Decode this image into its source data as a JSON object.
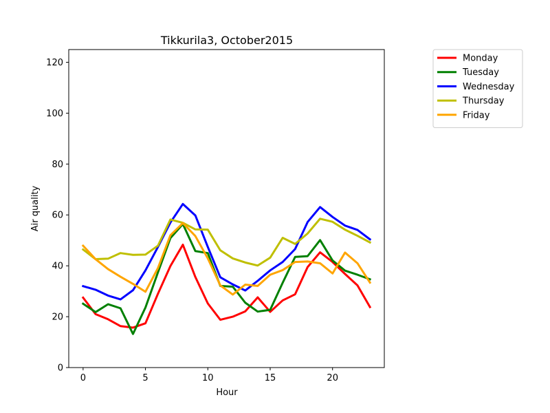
{
  "chart_data": {
    "type": "line",
    "title": "Tikkurila3, October2015",
    "xlabel": "Hour",
    "ylabel": "Air quality",
    "xlim": [
      -1.15,
      24.15
    ],
    "ylim": [
      0,
      125
    ],
    "xticks": [
      0,
      5,
      10,
      15,
      20
    ],
    "yticks": [
      0,
      20,
      40,
      60,
      80,
      100,
      120
    ],
    "grid": false,
    "legend_position": "outside-right-top",
    "x": [
      0,
      1,
      2,
      3,
      4,
      5,
      6,
      7,
      8,
      9,
      10,
      11,
      12,
      13,
      14,
      15,
      16,
      17,
      18,
      19,
      20,
      21,
      22,
      23
    ],
    "series": [
      {
        "name": "Monday",
        "color": "#ff0000",
        "values": [
          27.5,
          21,
          19,
          16.3,
          15.7,
          17.4,
          29,
          39.9,
          48.3,
          35.6,
          25.2,
          18.8,
          20,
          22.1,
          27.6,
          21.9,
          26.4,
          28.8,
          39.5,
          45.3,
          41.5,
          36.8,
          32.3,
          23.8
        ]
      },
      {
        "name": "Tuesday",
        "color": "#008000",
        "values": [
          25.1,
          21.8,
          24.9,
          23.3,
          13.2,
          23.6,
          37.4,
          50.9,
          56.4,
          45.8,
          45,
          32.1,
          31.8,
          25.5,
          22,
          22.7,
          33.3,
          43.5,
          43.8,
          50.1,
          42.1,
          38.1,
          36.5,
          34.7
        ]
      },
      {
        "name": "Wednesday",
        "color": "#0000ff",
        "values": [
          32,
          30.6,
          28.3,
          26.8,
          30.4,
          38.2,
          47.4,
          57,
          64.3,
          59.8,
          47.4,
          35.5,
          32.7,
          30.3,
          34.1,
          38.2,
          41.5,
          46.6,
          57.2,
          63.1,
          59.2,
          55.8,
          54.1,
          50.4
        ]
      },
      {
        "name": "Thursday",
        "color": "#bfbf00",
        "values": [
          46.4,
          42.6,
          42.8,
          45,
          44.3,
          44.4,
          47.9,
          58.2,
          56.9,
          54.3,
          54.2,
          46.1,
          42.9,
          41.3,
          40.1,
          43.2,
          51,
          48.6,
          52.7,
          58.5,
          57.3,
          54.2,
          51.8,
          49.2
        ]
      },
      {
        "name": "Friday",
        "color": "#ffa500",
        "values": [
          47.9,
          42.6,
          38.7,
          35.7,
          32.9,
          29.8,
          39.1,
          52,
          56.8,
          51.7,
          42.9,
          32.3,
          28.7,
          32.6,
          32.1,
          36.5,
          38.3,
          41.5,
          41.7,
          41,
          37,
          45.2,
          41,
          33.4
        ]
      }
    ]
  }
}
